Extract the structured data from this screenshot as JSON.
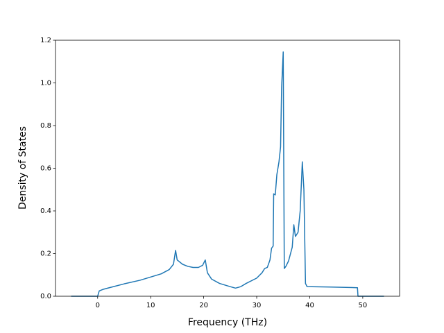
{
  "chart_data": {
    "type": "line",
    "x_label": "Frequency (THz)",
    "y_label": "Density of States",
    "x": [
      -5,
      0,
      0.3,
      1,
      3,
      5,
      8,
      10,
      12,
      13.5,
      14.3,
      14.7,
      15,
      16,
      17,
      18,
      19,
      19.8,
      20.3,
      20.7,
      21.5,
      23,
      25,
      26,
      27,
      28,
      30,
      31,
      31.5,
      32,
      32.5,
      32.8,
      33.1,
      33.2,
      33.5,
      33.8,
      34.2,
      34.5,
      34.7,
      35,
      35.2,
      35.5,
      36,
      36.7,
      37,
      37.3,
      37.8,
      38.2,
      38.6,
      38.9,
      39.2,
      39.5,
      44,
      49,
      49.1,
      54
    ],
    "values": [
      0,
      0,
      0.025,
      0.032,
      0.045,
      0.058,
      0.075,
      0.09,
      0.105,
      0.125,
      0.15,
      0.215,
      0.17,
      0.15,
      0.14,
      0.135,
      0.135,
      0.145,
      0.17,
      0.11,
      0.08,
      0.06,
      0.045,
      0.038,
      0.045,
      0.06,
      0.085,
      0.11,
      0.13,
      0.135,
      0.17,
      0.225,
      0.235,
      0.48,
      0.475,
      0.57,
      0.63,
      0.7,
      0.98,
      1.145,
      0.13,
      0.14,
      0.165,
      0.23,
      0.335,
      0.28,
      0.3,
      0.4,
      0.63,
      0.5,
      0.06,
      0.045,
      0.043,
      0.04,
      0,
      0
    ],
    "color": "#1f77b4",
    "xlim": [
      -7.95,
      56.95
    ],
    "xticks": [
      0,
      10,
      20,
      30,
      40,
      50
    ],
    "ylim": [
      0,
      1.2
    ],
    "yticks": [
      {
        "value": 0,
        "label": "0.0"
      },
      {
        "value": 0.2,
        "label": "0.2"
      },
      {
        "value": 0.4,
        "label": "0.4"
      },
      {
        "value": 0.6,
        "label": "0.6"
      },
      {
        "value": 0.8,
        "label": "0.8"
      },
      {
        "value": 1.0,
        "label": "1.0"
      },
      {
        "value": 1.2,
        "label": "1.2"
      }
    ]
  }
}
